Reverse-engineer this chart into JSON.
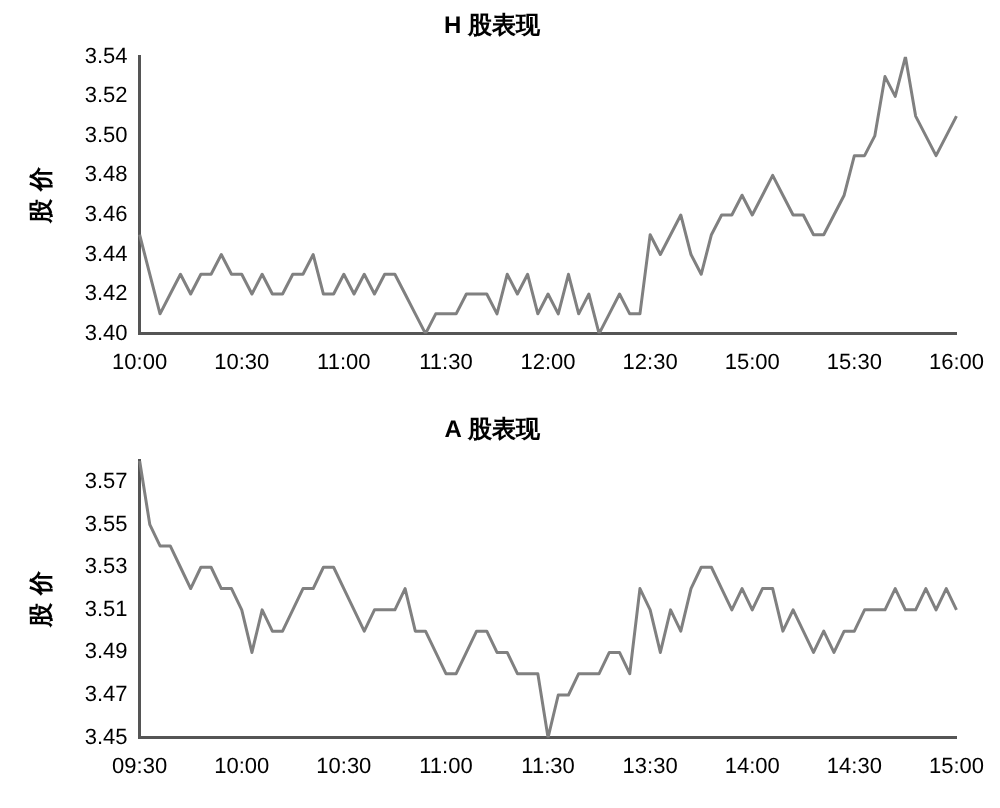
{
  "chart_data": [
    {
      "type": "line",
      "title": "H 股表现",
      "ylabel": "股 价",
      "grid": false,
      "legend": false,
      "marker": "none",
      "categories": [
        "10:00",
        null,
        null,
        null,
        null,
        null,
        null,
        null,
        null,
        null,
        "10:30",
        null,
        null,
        null,
        null,
        null,
        null,
        null,
        null,
        null,
        "11:00",
        null,
        null,
        null,
        null,
        null,
        null,
        null,
        null,
        null,
        "11:30",
        null,
        null,
        null,
        null,
        null,
        null,
        null,
        null,
        null,
        "12:00",
        null,
        null,
        null,
        null,
        null,
        null,
        null,
        null,
        null,
        "12:30",
        null,
        null,
        null,
        null,
        null,
        null,
        null,
        null,
        null,
        "15:00",
        null,
        null,
        null,
        null,
        null,
        null,
        null,
        null,
        null,
        "15:30",
        null,
        null,
        null,
        null,
        null,
        null,
        null,
        null,
        null,
        "16:00"
      ],
      "series": [
        {
          "color": "#808080",
          "values": [
            3.45,
            3.43,
            3.41,
            3.42,
            3.43,
            3.42,
            3.43,
            3.43,
            3.44,
            3.43,
            3.43,
            3.42,
            3.43,
            3.42,
            3.42,
            3.43,
            3.43,
            3.44,
            3.42,
            3.42,
            3.43,
            3.42,
            3.43,
            3.42,
            3.43,
            3.43,
            3.42,
            3.41,
            3.4,
            3.41,
            3.41,
            3.41,
            3.42,
            3.42,
            3.42,
            3.41,
            3.43,
            3.42,
            3.43,
            3.41,
            3.42,
            3.41,
            3.43,
            3.41,
            3.42,
            3.4,
            3.41,
            3.42,
            3.41,
            3.41,
            3.45,
            3.44,
            3.45,
            3.46,
            3.44,
            3.43,
            3.45,
            3.46,
            3.46,
            3.47,
            3.46,
            3.47,
            3.48,
            3.47,
            3.46,
            3.46,
            3.45,
            3.45,
            3.46,
            3.47,
            3.49,
            3.49,
            3.5,
            3.53,
            3.52,
            3.54,
            3.51,
            3.5,
            3.49,
            3.5,
            3.51
          ]
        }
      ],
      "ylim": [
        3.4,
        3.54
      ],
      "yticks": [
        {
          "value": 3.4,
          "label": "3.40"
        },
        3.42,
        3.44,
        3.46,
        3.48,
        {
          "value": 3.5,
          "label": "3.50"
        },
        3.52,
        3.54
      ]
    },
    {
      "type": "line",
      "title": "A 股表现",
      "ylabel": "股 价",
      "grid": false,
      "legend": false,
      "marker": "none",
      "categories": [
        "09:30",
        null,
        null,
        null,
        null,
        null,
        null,
        null,
        null,
        null,
        "10:00",
        null,
        null,
        null,
        null,
        null,
        null,
        null,
        null,
        null,
        "10:30",
        null,
        null,
        null,
        null,
        null,
        null,
        null,
        null,
        null,
        "11:00",
        null,
        null,
        null,
        null,
        null,
        null,
        null,
        null,
        null,
        "11:30",
        null,
        null,
        null,
        null,
        null,
        null,
        null,
        null,
        null,
        "13:30",
        null,
        null,
        null,
        null,
        null,
        null,
        null,
        null,
        null,
        "14:00",
        null,
        null,
        null,
        null,
        null,
        null,
        null,
        null,
        null,
        "14:30",
        null,
        null,
        null,
        null,
        null,
        null,
        null,
        null,
        null,
        "15:00"
      ],
      "series": [
        {
          "color": "#808080",
          "values": [
            3.58,
            3.55,
            3.54,
            3.54,
            3.53,
            3.52,
            3.53,
            3.53,
            3.52,
            3.52,
            3.51,
            3.49,
            3.51,
            3.5,
            3.5,
            3.51,
            3.52,
            3.52,
            3.53,
            3.53,
            3.52,
            3.51,
            3.5,
            3.51,
            3.51,
            3.51,
            3.52,
            3.5,
            3.5,
            3.49,
            3.48,
            3.48,
            3.49,
            3.5,
            3.5,
            3.49,
            3.49,
            3.48,
            3.48,
            3.48,
            3.45,
            3.47,
            3.47,
            3.48,
            3.48,
            3.48,
            3.49,
            3.49,
            3.48,
            3.52,
            3.51,
            3.49,
            3.51,
            3.5,
            3.52,
            3.53,
            3.53,
            3.52,
            3.51,
            3.52,
            3.51,
            3.52,
            3.52,
            3.5,
            3.51,
            3.5,
            3.49,
            3.5,
            3.49,
            3.5,
            3.5,
            3.51,
            3.51,
            3.51,
            3.52,
            3.51,
            3.51,
            3.52,
            3.51,
            3.52,
            3.51
          ]
        }
      ],
      "ylim": [
        3.45,
        3.58
      ],
      "yticks": [
        3.45,
        3.47,
        3.49,
        3.51,
        3.53,
        3.55,
        3.57
      ]
    }
  ]
}
